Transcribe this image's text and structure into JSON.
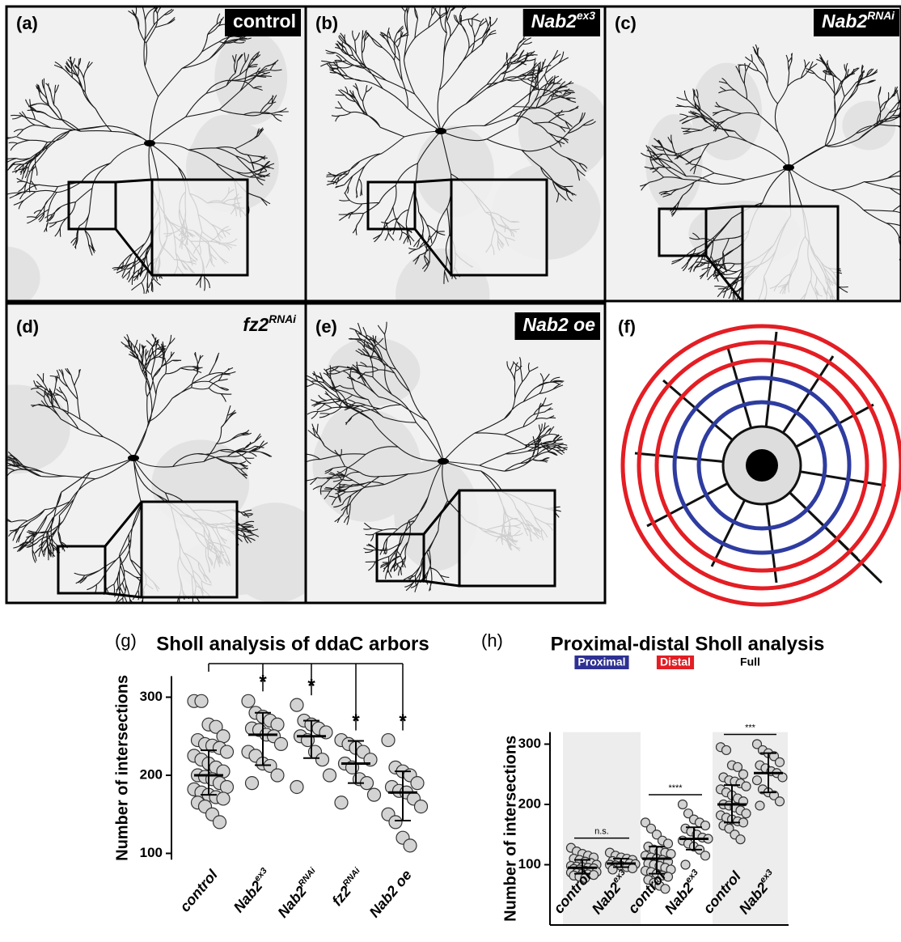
{
  "panels": [
    {
      "letter": "(a)",
      "label": "control"
    },
    {
      "letter": "(b)",
      "label": "Nab2",
      "sup": "ex3"
    },
    {
      "letter": "(c)",
      "label": "Nab2",
      "sup": "RNAi"
    },
    {
      "letter": "(d)",
      "label": "fz2",
      "sup": "RNAi"
    },
    {
      "letter": "(e)",
      "label": "Nab2 oe"
    },
    {
      "letter": "(f)"
    }
  ],
  "chart_data": [
    {
      "type": "dotplot",
      "letter": "(g)",
      "title": "Sholl analysis of ddaC arbors",
      "ylabel": "Number of intersections",
      "categories": [
        "control",
        "Nab2",
        "Nab2",
        "fz2",
        "Nab2 oe"
      ],
      "category_superscripts": [
        null,
        "ex3",
        "RNAi",
        "RNAi",
        null
      ],
      "points": [
        [
          295,
          295,
          265,
          262,
          250,
          245,
          240,
          238,
          235,
          230,
          225,
          220,
          215,
          210,
          205,
          200,
          198,
          195,
          190,
          185,
          182,
          178,
          175,
          172,
          170,
          165,
          160,
          150,
          140
        ],
        [
          295,
          280,
          275,
          270,
          265,
          260,
          258,
          252,
          250,
          240,
          230,
          225,
          215,
          212,
          200,
          190
        ],
        [
          290,
          270,
          265,
          260,
          255,
          250,
          245,
          230,
          220,
          200,
          185
        ],
        [
          245,
          240,
          235,
          230,
          220,
          215,
          210,
          195,
          190,
          175,
          165
        ],
        [
          245,
          210,
          205,
          200,
          190,
          185,
          180,
          178,
          170,
          160,
          150,
          140,
          120,
          110
        ]
      ],
      "medians": [
        200,
        252,
        250,
        215,
        178
      ],
      "lower": [
        175,
        213,
        222,
        190,
        142
      ],
      "upper": [
        232,
        280,
        270,
        244,
        205
      ],
      "significance": [
        null,
        "*",
        "*",
        "*",
        "*"
      ],
      "ylim": [
        92,
        327
      ],
      "yticks": [
        100,
        200,
        300
      ],
      "color": "#d3d3d3"
    },
    {
      "type": "dotplot",
      "letter": "(h)",
      "title": "Proximal-distal Sholl analysis",
      "ylabel": "Number of intersections",
      "categories": [
        "control",
        "Nab2",
        "control",
        "Nab2",
        "control",
        "Nab2"
      ],
      "category_superscripts": [
        null,
        "ex3",
        null,
        "ex3",
        null,
        "ex3"
      ],
      "groups": [
        {
          "name": "Proximal",
          "label_color": "#2e3192",
          "significance": "n.s.",
          "shaded": true
        },
        {
          "name": "Distal",
          "label_color": "#e31e24",
          "significance": "****",
          "shaded": false
        },
        {
          "name": "Full",
          "label_color": null,
          "significance": "***",
          "shaded": true
        }
      ],
      "points": [
        [
          128,
          122,
          118,
          115,
          112,
          110,
          108,
          105,
          103,
          100,
          98,
          97,
          96,
          95,
          94,
          93,
          92,
          90,
          89,
          88,
          87,
          86,
          85,
          84,
          83,
          82,
          80,
          78
        ],
        [
          120,
          115,
          112,
          110,
          108,
          106,
          104,
          103,
          102,
          101,
          100,
          99,
          98,
          96,
          94,
          92
        ],
        [
          170,
          160,
          150,
          140,
          135,
          130,
          125,
          122,
          120,
          118,
          115,
          112,
          110,
          108,
          105,
          102,
          100,
          98,
          95,
          92,
          90,
          88,
          85,
          82,
          80,
          75,
          70,
          65,
          60
        ],
        [
          200,
          185,
          175,
          170,
          165,
          160,
          155,
          150,
          145,
          143,
          140,
          135,
          130,
          125,
          115,
          100
        ],
        [
          295,
          290,
          265,
          262,
          250,
          245,
          240,
          238,
          235,
          230,
          225,
          220,
          215,
          210,
          205,
          200,
          198,
          195,
          190,
          185,
          182,
          178,
          175,
          172,
          170,
          165,
          160,
          150,
          142
        ],
        [
          300,
          290,
          285,
          280,
          270,
          265,
          260,
          255,
          252,
          245,
          240,
          225,
          220,
          215,
          205,
          198
        ]
      ],
      "medians": [
        95,
        102,
        110,
        143,
        200,
        252
      ],
      "lower": [
        85,
        96,
        85,
        125,
        170,
        220
      ],
      "upper": [
        108,
        110,
        130,
        162,
        232,
        285
      ],
      "ylim": [
        0,
        320
      ],
      "yticks": [
        100,
        200,
        300
      ],
      "color": "#d3d3d3"
    }
  ]
}
